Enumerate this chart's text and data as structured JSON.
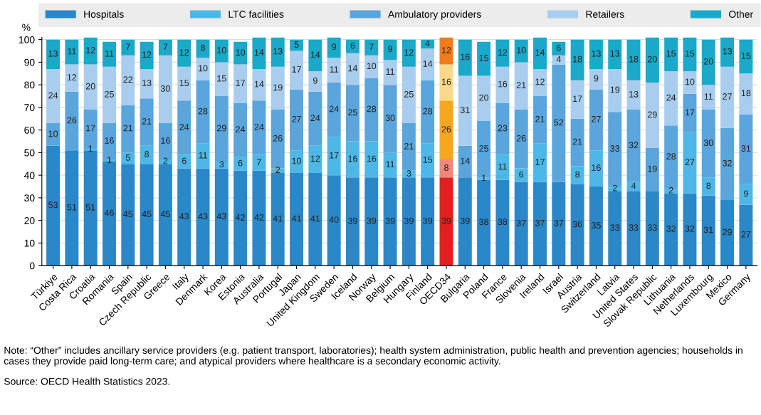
{
  "chart_data": {
    "type": "bar",
    "stacked": true,
    "ylabel": "%",
    "categories": [
      "Türkiye",
      "Costa Rica",
      "Croatia",
      "Romania",
      "Spain",
      "Czech Republic",
      "Greece",
      "Italy",
      "Denmark",
      "Korea",
      "Estonia",
      "Australia",
      "Portugal",
      "Japan",
      "United Kingdom",
      "Sweden",
      "Iceland",
      "Norway",
      "Belgium",
      "Hungary",
      "Finland",
      "OECD34",
      "Bulgaria",
      "Poland",
      "France",
      "Slovenia",
      "Ireland",
      "Israel",
      "Austria",
      "Switzerland",
      "Latvia",
      "United States",
      "Slovak Republic",
      "Lithuania",
      "Netherlands",
      "Luxembourg",
      "Mexico",
      "Germany"
    ],
    "series": [
      {
        "name": "Hospitals",
        "color": "#2a87c8",
        "colors": [
          "#2a87c8",
          "#2a87c8",
          "#2a87c8",
          "#2a87c8",
          "#2a87c8",
          "#2a87c8",
          "#2a87c8",
          "#2a87c8",
          "#2a87c8",
          "#2a87c8",
          "#2a87c8",
          "#2a87c8",
          "#2a87c8",
          "#2a87c8",
          "#2a87c8",
          "#2a87c8",
          "#2a87c8",
          "#2a87c8",
          "#2a87c8",
          "#2a87c8",
          "#2a87c8",
          "#e0201f",
          "#2a87c8",
          "#2a87c8",
          "#2a87c8",
          "#2a87c8",
          "#2a87c8",
          "#2a87c8",
          "#2a87c8",
          "#2a87c8",
          "#2a87c8",
          "#2a87c8",
          "#2a87c8",
          "#2a87c8",
          "#2a87c8",
          "#2a87c8",
          "#2a87c8",
          "#2a87c8"
        ],
        "values": [
          53,
          51,
          51,
          46,
          45,
          45,
          45,
          43,
          43,
          43,
          42,
          42,
          41,
          41,
          41,
          40,
          39,
          39,
          39,
          39,
          39,
          39,
          39,
          38,
          38,
          37,
          37,
          37,
          36,
          35,
          33,
          33,
          33,
          32,
          32,
          31,
          29,
          27
        ]
      },
      {
        "name": "LTC facilities",
        "color": "#4db8e8",
        "colors": [
          "#4db8e8",
          "#4db8e8",
          "#4db8e8",
          "#4db8e8",
          "#4db8e8",
          "#4db8e8",
          "#4db8e8",
          "#4db8e8",
          "#4db8e8",
          "#4db8e8",
          "#4db8e8",
          "#4db8e8",
          "#4db8e8",
          "#4db8e8",
          "#4db8e8",
          "#4db8e8",
          "#4db8e8",
          "#4db8e8",
          "#4db8e8",
          "#4db8e8",
          "#4db8e8",
          "#f0877a",
          "#4db8e8",
          "#4db8e8",
          "#4db8e8",
          "#4db8e8",
          "#4db8e8",
          "#4db8e8",
          "#4db8e8",
          "#4db8e8",
          "#4db8e8",
          "#4db8e8",
          "#4db8e8",
          "#4db8e8",
          "#4db8e8",
          "#4db8e8",
          "#4db8e8",
          "#4db8e8"
        ],
        "values": [
          null,
          null,
          1,
          1,
          5,
          8,
          2,
          6,
          11,
          3,
          6,
          7,
          2,
          10,
          12,
          17,
          16,
          16,
          11,
          3,
          15,
          8,
          null,
          1,
          11,
          6,
          17,
          null,
          8,
          16,
          2,
          4,
          null,
          2,
          27,
          8,
          null,
          9
        ]
      },
      {
        "name": "Ambulatory providers",
        "color": "#5aa5dc",
        "colors": [
          "#5aa5dc",
          "#5aa5dc",
          "#5aa5dc",
          "#5aa5dc",
          "#5aa5dc",
          "#5aa5dc",
          "#5aa5dc",
          "#5aa5dc",
          "#5aa5dc",
          "#5aa5dc",
          "#5aa5dc",
          "#5aa5dc",
          "#5aa5dc",
          "#5aa5dc",
          "#5aa5dc",
          "#5aa5dc",
          "#5aa5dc",
          "#5aa5dc",
          "#5aa5dc",
          "#5aa5dc",
          "#5aa5dc",
          "#f5a81e",
          "#5aa5dc",
          "#5aa5dc",
          "#5aa5dc",
          "#5aa5dc",
          "#5aa5dc",
          "#5aa5dc",
          "#5aa5dc",
          "#5aa5dc",
          "#5aa5dc",
          "#5aa5dc",
          "#5aa5dc",
          "#5aa5dc",
          "#5aa5dc",
          "#5aa5dc",
          "#5aa5dc",
          "#5aa5dc"
        ],
        "values": [
          10,
          26,
          17,
          16,
          21,
          21,
          16,
          24,
          28,
          29,
          24,
          24,
          26,
          27,
          24,
          24,
          25,
          28,
          30,
          21,
          28,
          26,
          14,
          25,
          23,
          26,
          21,
          52,
          21,
          27,
          33,
          32,
          19,
          28,
          17,
          30,
          32,
          31
        ]
      },
      {
        "name": "Retailers",
        "color": "#a9cdee",
        "colors": [
          "#a9cdee",
          "#a9cdee",
          "#a9cdee",
          "#a9cdee",
          "#a9cdee",
          "#a9cdee",
          "#a9cdee",
          "#a9cdee",
          "#a9cdee",
          "#a9cdee",
          "#a9cdee",
          "#a9cdee",
          "#a9cdee",
          "#a9cdee",
          "#a9cdee",
          "#a9cdee",
          "#a9cdee",
          "#a9cdee",
          "#a9cdee",
          "#a9cdee",
          "#a9cdee",
          "#fbd98a",
          "#a9cdee",
          "#a9cdee",
          "#a9cdee",
          "#a9cdee",
          "#a9cdee",
          "#a9cdee",
          "#a9cdee",
          "#a9cdee",
          "#a9cdee",
          "#a9cdee",
          "#a9cdee",
          "#a9cdee",
          "#a9cdee",
          "#a9cdee",
          "#a9cdee",
          "#a9cdee"
        ],
        "values": [
          24,
          12,
          20,
          25,
          22,
          13,
          30,
          15,
          10,
          15,
          17,
          14,
          19,
          17,
          9,
          11,
          14,
          10,
          11,
          25,
          14,
          16,
          31,
          20,
          16,
          21,
          12,
          4,
          17,
          9,
          19,
          13,
          29,
          24,
          10,
          11,
          27,
          18
        ]
      },
      {
        "name": "Other",
        "color": "#1aa9c9",
        "colors": [
          "#1aa9c9",
          "#1aa9c9",
          "#1aa9c9",
          "#1aa9c9",
          "#1aa9c9",
          "#1aa9c9",
          "#1aa9c9",
          "#1aa9c9",
          "#1aa9c9",
          "#1aa9c9",
          "#1aa9c9",
          "#1aa9c9",
          "#1aa9c9",
          "#1aa9c9",
          "#1aa9c9",
          "#1aa9c9",
          "#1aa9c9",
          "#1aa9c9",
          "#1aa9c9",
          "#1aa9c9",
          "#1aa9c9",
          "#f07c1c",
          "#1aa9c9",
          "#1aa9c9",
          "#1aa9c9",
          "#1aa9c9",
          "#1aa9c9",
          "#1aa9c9",
          "#1aa9c9",
          "#1aa9c9",
          "#1aa9c9",
          "#1aa9c9",
          "#1aa9c9",
          "#1aa9c9",
          "#1aa9c9",
          "#1aa9c9",
          "#1aa9c9",
          "#1aa9c9"
        ],
        "values": [
          13,
          11,
          12,
          11,
          7,
          12,
          7,
          12,
          8,
          10,
          10,
          14,
          13,
          5,
          14,
          9,
          6,
          7,
          9,
          12,
          4,
          12,
          16,
          15,
          12,
          10,
          14,
          6,
          18,
          13,
          13,
          18,
          20,
          15,
          15,
          20,
          13,
          15
        ]
      }
    ],
    "ylim": [
      0,
      101
    ],
    "yticks": [
      0,
      10,
      20,
      30,
      40,
      50,
      60,
      70,
      80,
      90,
      100
    ],
    "grid": "y",
    "legend": "top",
    "data_labels": true,
    "annotations": [
      "Note: “Other” includes ancillary service providers (e.g. patient transport, laboratories); health system administration, public health and prevention agencies; households in cases they provide paid long-term care; and atypical providers where healthcare is a secondary economic activity.",
      "Source: OECD Health Statistics 2023."
    ]
  }
}
